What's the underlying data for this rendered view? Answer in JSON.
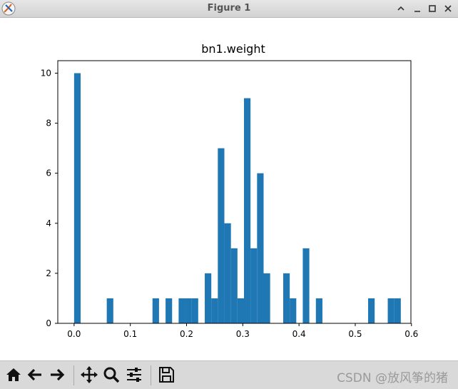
{
  "window": {
    "title": "Figure 1",
    "controls": [
      "minimize",
      "maximize",
      "close"
    ]
  },
  "toolbar": {
    "buttons": [
      {
        "name": "home-icon",
        "tooltip": ""
      },
      {
        "name": "back-icon",
        "tooltip": ""
      },
      {
        "name": "forward-icon",
        "tooltip": ""
      },
      {
        "name": "pan-icon",
        "tooltip": ""
      },
      {
        "name": "zoom-icon",
        "tooltip": ""
      },
      {
        "name": "configure-subplots-icon",
        "tooltip": ""
      },
      {
        "name": "save-icon",
        "tooltip": ""
      }
    ],
    "watermark": "CSDN @放风筝的猪"
  },
  "colors": {
    "bar": "#1f77b4",
    "axes": "#000000",
    "titlebar": "#d9d9d9"
  },
  "chart_data": {
    "type": "bar",
    "title": "bn1.weight",
    "xlabel": "",
    "ylabel": "",
    "xlim": [
      -0.029,
      0.599
    ],
    "ylim": [
      0,
      10.5
    ],
    "xticks": [
      0.0,
      0.1,
      0.2,
      0.3,
      0.4,
      0.5,
      0.6
    ],
    "xtick_labels": [
      "0.0",
      "0.1",
      "0.2",
      "0.3",
      "0.4",
      "0.5",
      "0.6"
    ],
    "yticks": [
      0,
      2,
      4,
      6,
      8,
      10
    ],
    "ytick_labels": [
      "0",
      "2",
      "4",
      "6",
      "8",
      "10"
    ],
    "grid": false,
    "bin_width": 0.01162,
    "bins": [
      {
        "x": 0.0,
        "value": 10
      },
      {
        "x": 0.0581,
        "value": 1
      },
      {
        "x": 0.1394,
        "value": 1
      },
      {
        "x": 0.1627,
        "value": 1
      },
      {
        "x": 0.1859,
        "value": 1
      },
      {
        "x": 0.1975,
        "value": 1
      },
      {
        "x": 0.2091,
        "value": 1
      },
      {
        "x": 0.2324,
        "value": 2
      },
      {
        "x": 0.244,
        "value": 1
      },
      {
        "x": 0.2556,
        "value": 7
      },
      {
        "x": 0.2673,
        "value": 4
      },
      {
        "x": 0.2789,
        "value": 3
      },
      {
        "x": 0.2905,
        "value": 1
      },
      {
        "x": 0.3021,
        "value": 9
      },
      {
        "x": 0.3137,
        "value": 3
      },
      {
        "x": 0.3254,
        "value": 6
      },
      {
        "x": 0.337,
        "value": 2
      },
      {
        "x": 0.3719,
        "value": 2
      },
      {
        "x": 0.3835,
        "value": 1
      },
      {
        "x": 0.4067,
        "value": 3
      },
      {
        "x": 0.43,
        "value": 1
      },
      {
        "x": 0.5229,
        "value": 1
      },
      {
        "x": 0.5578,
        "value": 1
      },
      {
        "x": 0.5694,
        "value": 1
      }
    ]
  }
}
